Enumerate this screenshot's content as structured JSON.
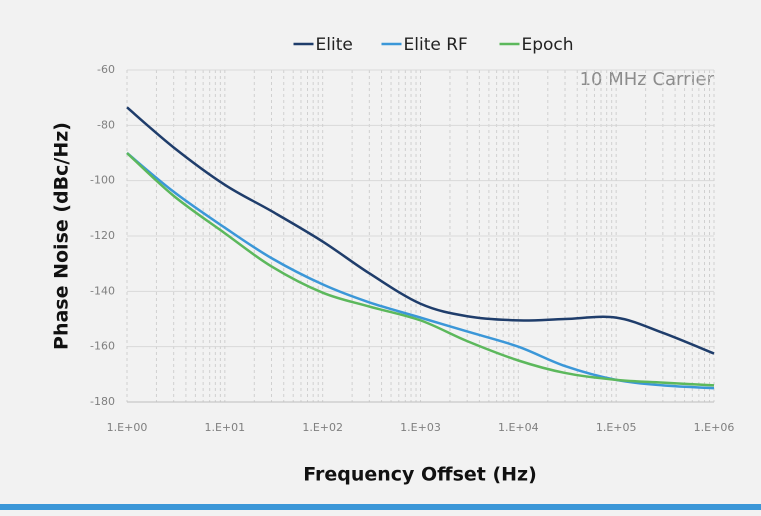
{
  "chart_data": {
    "type": "line",
    "annotation": "10 MHz Carrier",
    "x_label": "Frequency Offset (Hz)",
    "y_label": "Phase Noise (dBc/Hz)",
    "log_x": true,
    "grid": true,
    "minor_grid": true,
    "legend": "top",
    "x": [
      1,
      3,
      10,
      30,
      100,
      300,
      1000,
      3000,
      10000,
      30000,
      100000,
      300000,
      1000000
    ],
    "series": [
      {
        "name": "Elite",
        "color": "#1f3d6b",
        "values": [
          -73.5,
          -88,
          -101.5,
          -111,
          -122,
          -133.5,
          -144.5,
          -149,
          -150.5,
          -150,
          -149.5,
          -155,
          -162.5
        ]
      },
      {
        "name": "Elite RF",
        "color": "#3b97d8",
        "values": [
          -90,
          -104,
          -117,
          -128,
          -137.5,
          -144,
          -149.5,
          -154.5,
          -160,
          -167,
          -172,
          -174,
          -175
        ]
      },
      {
        "name": "Epoch",
        "color": "#5cb85c",
        "values": [
          -90,
          -105.5,
          -119,
          -131,
          -140.5,
          -145.5,
          -150.5,
          -158,
          -165,
          -169.5,
          -172,
          -173,
          -174
        ]
      }
    ],
    "xlim": [
      1,
      1000000
    ],
    "xticks": [
      {
        "value": 1,
        "label": "1.E+00"
      },
      {
        "value": 10,
        "label": "1.E+01"
      },
      {
        "value": 100,
        "label": "1.E+02"
      },
      {
        "value": 1000,
        "label": "1.E+03"
      },
      {
        "value": 10000,
        "label": "1.E+04"
      },
      {
        "value": 100000,
        "label": "1.E+05"
      },
      {
        "value": 1000000,
        "label": "1.E+06"
      }
    ],
    "ylim": [
      -180,
      -60
    ],
    "yticks": [
      -180,
      -160,
      -140,
      -120,
      -100,
      -80,
      -60
    ]
  }
}
